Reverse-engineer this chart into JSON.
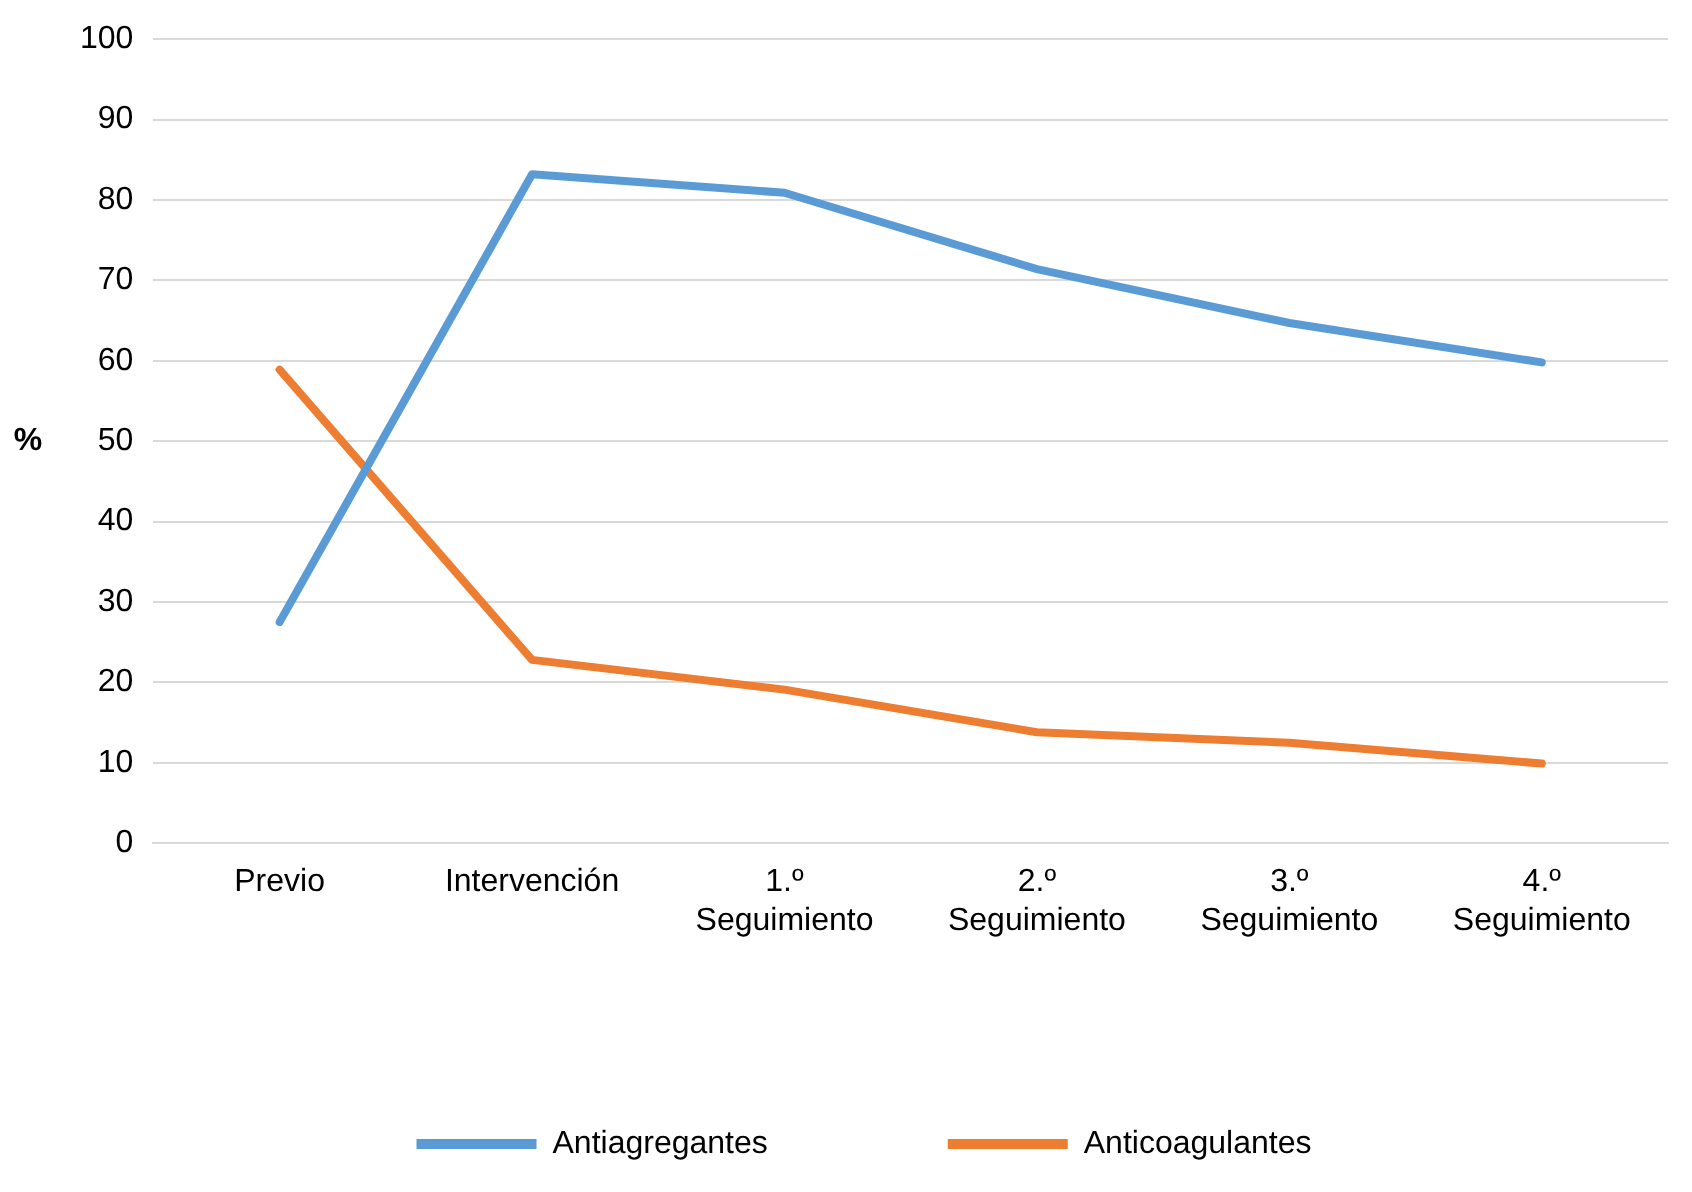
{
  "chart_data": {
    "type": "line",
    "ylabel": "%",
    "categories": [
      "Previo",
      "Intervención",
      "1.º Seguimiento",
      "2.º Seguimiento",
      "3.º Seguimiento",
      "4.º Seguimiento"
    ],
    "series": [
      {
        "name": "Antiagregantes",
        "color": "#5b9bd5",
        "values": [
          27.5,
          83.2,
          80.9,
          71.4,
          64.7,
          59.8
        ]
      },
      {
        "name": "Anticoagulantes",
        "color": "#ed7d31",
        "values": [
          58.9,
          22.8,
          19.1,
          13.8,
          12.5,
          9.9
        ]
      }
    ],
    "ylim": [
      0,
      100
    ],
    "yticks": [
      0,
      10,
      20,
      30,
      40,
      50,
      60,
      70,
      80,
      90,
      100
    ],
    "grid": "y",
    "legend": "bottom",
    "marker": "none",
    "line_style": "solid"
  }
}
